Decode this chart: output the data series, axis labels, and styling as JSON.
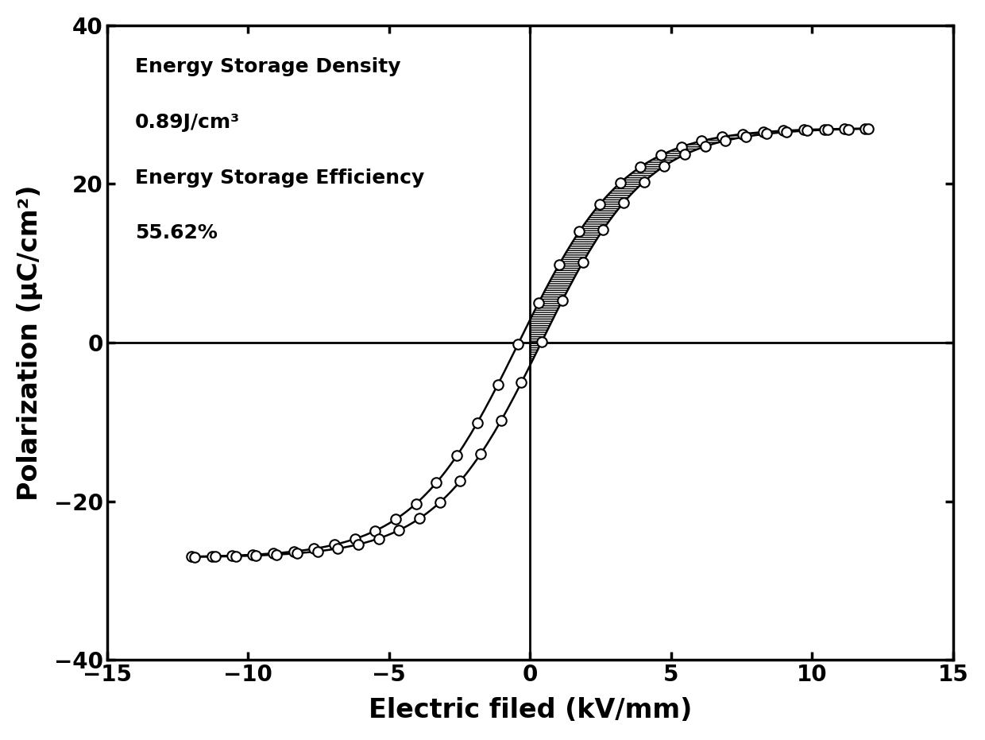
{
  "xlim": [
    -15,
    15
  ],
  "ylim": [
    -40,
    40
  ],
  "xlabel": "Electric filed (kV/mm)",
  "ylabel": "Polarization (μC/cm²)",
  "annotation_line1": "Energy Storage Density",
  "annotation_line2": "0.89J/cm³",
  "annotation_line3": "Energy Storage Efficiency",
  "annotation_line4": "55.62%",
  "xticks": [
    -15,
    -10,
    -5,
    0,
    5,
    10,
    15
  ],
  "yticks": [
    -40,
    -20,
    0,
    20,
    40
  ],
  "background_color": "#ffffff",
  "line_color": "#000000",
  "E_max": 12.0,
  "P_max": 27.0
}
